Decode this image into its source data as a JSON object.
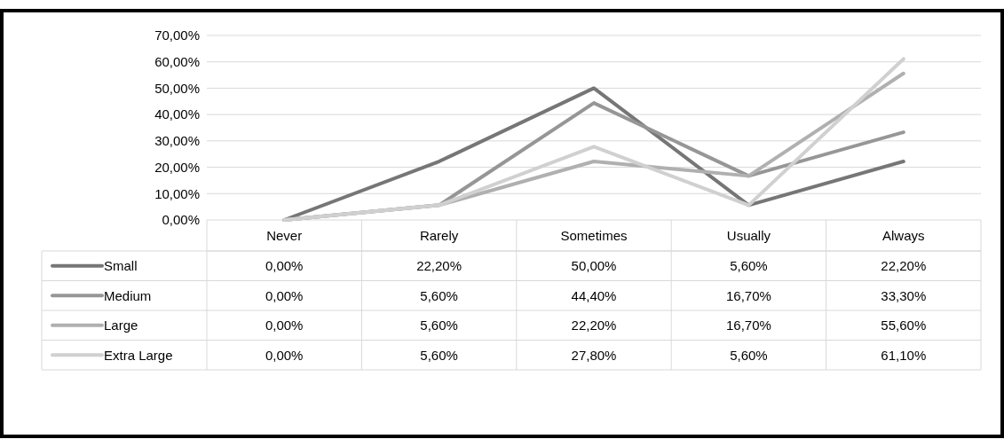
{
  "chart_data": {
    "type": "line",
    "categories": [
      "Never",
      "Rarely",
      "Sometimes",
      "Usually",
      "Always"
    ],
    "ylim": [
      0,
      70
    ],
    "yticks": [
      {
        "value": 0,
        "label": "0,00%"
      },
      {
        "value": 10,
        "label": "10,00%"
      },
      {
        "value": 20,
        "label": "20,00%"
      },
      {
        "value": 30,
        "label": "30,00%"
      },
      {
        "value": 40,
        "label": "40,00%"
      },
      {
        "value": 50,
        "label": "50,00%"
      },
      {
        "value": 60,
        "label": "60,00%"
      },
      {
        "value": 70,
        "label": "70,00%"
      }
    ],
    "grid": "y",
    "legend": "bottom",
    "marker": "none",
    "line_style": "solid",
    "series": [
      {
        "name": "Small",
        "color": "#767676",
        "values": [
          0,
          22.2,
          50,
          5.6,
          22.2
        ],
        "value_labels": [
          "0,00%",
          "22,20%",
          "50,00%",
          "5,60%",
          "22,20%"
        ]
      },
      {
        "name": "Medium",
        "color": "#969696",
        "values": [
          0,
          5.6,
          44.4,
          16.7,
          33.3
        ],
        "value_labels": [
          "0,00%",
          "5,60%",
          "44,40%",
          "16,70%",
          "33,30%"
        ]
      },
      {
        "name": "Large",
        "color": "#b0b0b0",
        "values": [
          0,
          5.6,
          22.2,
          16.7,
          55.6
        ],
        "value_labels": [
          "0,00%",
          "5,60%",
          "22,20%",
          "16,70%",
          "55,60%"
        ]
      },
      {
        "name": "Extra Large",
        "color": "#d0d0d0",
        "values": [
          0,
          5.6,
          27.8,
          5.6,
          61.1
        ],
        "value_labels": [
          "0,00%",
          "5,60%",
          "27,80%",
          "5,60%",
          "61,10%"
        ]
      }
    ]
  }
}
